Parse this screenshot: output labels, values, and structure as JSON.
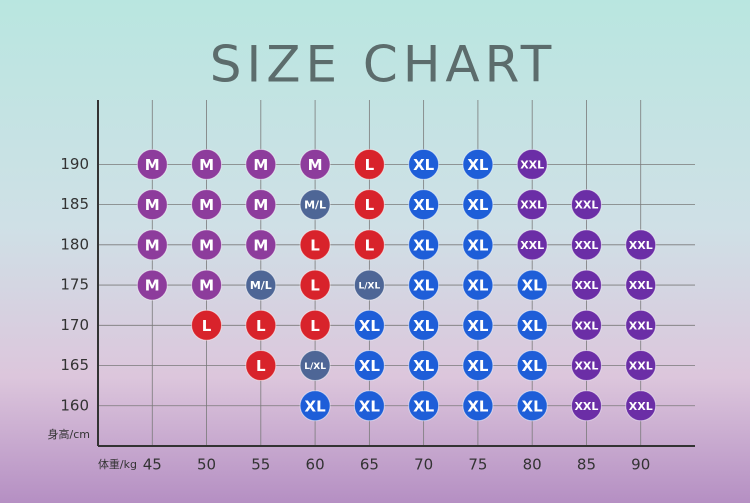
{
  "chart_data": {
    "type": "size-grid",
    "title": "SIZE CHART",
    "x_label": "体重/kg",
    "y_label": "身高/cm",
    "xlim": [
      40,
      95
    ],
    "ylim": [
      155,
      198
    ],
    "xticks": [
      45,
      50,
      55,
      60,
      65,
      70,
      75,
      80,
      85,
      90
    ],
    "yticks": [
      160,
      165,
      170,
      175,
      180,
      185,
      190
    ],
    "colors": {
      "M": "#8d3c9c",
      "L": "#d8232b",
      "XL": "#1e5ed8",
      "XXL": "#6b2ea6",
      "M/L": "#4e6696",
      "L/XL": "#4e6696"
    },
    "cells": [
      [
        null,
        null,
        null,
        "XL",
        "XL",
        "XL",
        "XL",
        "XL",
        "XXL",
        "XXL"
      ],
      [
        null,
        null,
        "L",
        "L/XL",
        "XL",
        "XL",
        "XL",
        "XL",
        "XXL",
        "XXL"
      ],
      [
        null,
        "L",
        "L",
        "L",
        "XL",
        "XL",
        "XL",
        "XL",
        "XXL",
        "XXL"
      ],
      [
        "M",
        "M",
        "M/L",
        "L",
        "L/XL",
        "XL",
        "XL",
        "XL",
        "XXL",
        "XXL"
      ],
      [
        "M",
        "M",
        "M",
        "L",
        "L",
        "XL",
        "XL",
        "XXL",
        "XXL",
        "XXL"
      ],
      [
        "M",
        "M",
        "M",
        "M/L",
        "L",
        "XL",
        "XL",
        "XXL",
        "XXL",
        null
      ],
      [
        "M",
        "M",
        "M",
        "M",
        "L",
        "XL",
        "XL",
        "XXL",
        null,
        null
      ]
    ]
  }
}
